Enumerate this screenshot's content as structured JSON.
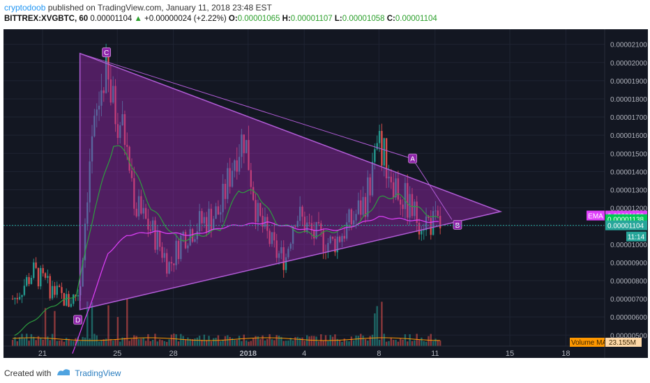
{
  "header": {
    "author": "cryptodoob",
    "published_text": "published on TradingView.com, January 11, 2018 23:48 EST"
  },
  "ticker": {
    "symbol_line": "BITTREX:XVGBTC, 60",
    "last": "0.00001104",
    "change": "+0.00000024 (+2.22%)",
    "open_label": "O:",
    "open": "0.00001065",
    "high_label": "H:",
    "high": "0.00001107",
    "low_label": "L:",
    "low": "0.00001058",
    "close_label": "C:",
    "close": "0.00001104"
  },
  "colors": {
    "background": "#131722",
    "triangle_fill": "#9c27b0",
    "up_candle": "#26a69a",
    "down_candle": "#ef5350",
    "ema_fast": "#2e9e3f",
    "ema_slow": "#e040fb",
    "volume_ma": "#ff9800"
  },
  "chart_data": {
    "type": "candlestick",
    "title": "BITTREX:XVGBTC, 60",
    "x_ticks": [
      "21",
      "25",
      "28",
      "2018",
      "4",
      "8",
      "11",
      "15",
      "18"
    ],
    "y_ticks": [
      "0.00000500",
      "0.00000600",
      "0.00000700",
      "0.00000800",
      "0.00000900",
      "0.00001000",
      "0.00001100",
      "0.00001200",
      "0.00001300",
      "0.00001400",
      "0.00001500",
      "0.00001600",
      "0.00001700",
      "0.00001800",
      "0.00001900",
      "0.00002000",
      "0.00002100"
    ],
    "ylim": [
      4.5e-06,
      2.16e-05
    ],
    "price_day_anchors": [
      [
        19.5,
        7e-06
      ],
      [
        20.5,
        8.5e-06
      ],
      [
        21.5,
        7.5e-06
      ],
      [
        22.4,
        6.8e-06
      ],
      [
        23.0,
        7.5e-06
      ],
      [
        23.5,
        1.45e-05
      ],
      [
        24.3,
        1.95e-05
      ],
      [
        24.8,
        1.75e-05
      ],
      [
        25.3,
        1.65e-05
      ],
      [
        26.0,
        1.2e-05
      ],
      [
        27.0,
        1.05e-05
      ],
      [
        27.8,
        8.8e-06
      ],
      [
        28.5,
        1.05e-05
      ],
      [
        29.5,
        1.12e-05
      ],
      [
        30.5,
        1.18e-05
      ],
      [
        31.3,
        1.5e-05
      ],
      [
        31.8,
        1.6e-05
      ],
      [
        32.5,
        1.15e-05
      ],
      [
        33.5,
        9.5e-06
      ],
      [
        34.0,
        9.2e-06
      ],
      [
        34.5,
        1.18e-05
      ],
      [
        35.5,
        1.05e-05
      ],
      [
        36.5,
        1e-05
      ],
      [
        37.5,
        1.12e-05
      ],
      [
        38.3,
        1.25e-05
      ],
      [
        39.0,
        1.55e-05
      ],
      [
        40.0,
        1.3e-05
      ],
      [
        41.0,
        1.15e-05
      ],
      [
        42.3,
        1.1e-05
      ]
    ],
    "ema_fast_anchors": [
      [
        19.5,
        5e-06
      ],
      [
        21.5,
        6.6e-06
      ],
      [
        22.8,
        7.2e-06
      ],
      [
        23.8,
        1.2e-05
      ],
      [
        24.8,
        1.55e-05
      ],
      [
        25.5,
        1.5e-05
      ],
      [
        26.8,
        1.2e-05
      ],
      [
        28.3,
        1.02e-05
      ],
      [
        29.5,
        1.05e-05
      ],
      [
        30.5,
        1.08e-05
      ],
      [
        31.5,
        1.3e-05
      ],
      [
        32.5,
        1.28e-05
      ],
      [
        33.5,
        1.12e-05
      ],
      [
        34.5,
        1.08e-05
      ],
      [
        35.5,
        1.05e-05
      ],
      [
        36.5,
        1.07e-05
      ],
      [
        38.0,
        1.12e-05
      ],
      [
        39.0,
        1.25e-05
      ],
      [
        40.0,
        1.27e-05
      ],
      [
        41.0,
        1.2e-05
      ],
      [
        42.3,
        1.13e-05
      ]
    ],
    "ema_slow_anchors": [
      [
        22.6,
        4e-06
      ],
      [
        23.5,
        6.5e-06
      ],
      [
        24.5,
        9.5e-06
      ],
      [
        25.5,
        1.05e-05
      ],
      [
        27.0,
        1.07e-05
      ],
      [
        29.0,
        1.05e-05
      ],
      [
        31.0,
        1.1e-05
      ],
      [
        33.0,
        1.12e-05
      ],
      [
        35.0,
        1.08e-05
      ],
      [
        37.0,
        1.08e-05
      ],
      [
        39.0,
        1.15e-05
      ],
      [
        41.0,
        1.13e-05
      ],
      [
        42.3,
        1.12e-05
      ]
    ],
    "triangle": {
      "C": [
        23.0,
        2.05e-05
      ],
      "D": [
        23.0,
        6.4e-06
      ],
      "apex": [
        45.5,
        1.18e-05
      ],
      "labels": [
        "A",
        "B",
        "C",
        "D"
      ]
    },
    "horizontal_line": 1.104e-05,
    "price_labels": [
      {
        "text": "EMA",
        "value": "0.00001158",
        "color": "#e040fb"
      },
      {
        "text": "",
        "value": "0.00001138",
        "color": "#00c853"
      },
      {
        "text": "",
        "value": "0.00001104",
        "color": "#26a69a"
      }
    ],
    "countdown": "11:14",
    "volume_ma_label": "Volume MA",
    "volume_ma_value": "23.155M"
  },
  "footer": {
    "created_with": "Created with",
    "brand": "TradingView"
  }
}
